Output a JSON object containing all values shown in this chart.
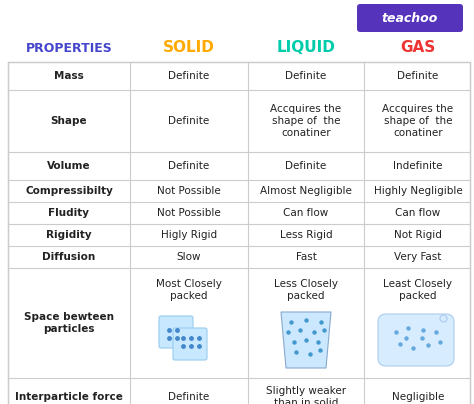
{
  "title": "teachoo",
  "headers": [
    "PROPERTIES",
    "SOLID",
    "LIQUID",
    "GAS"
  ],
  "header_colors": [
    "#4444cc",
    "#ffaa00",
    "#00ccaa",
    "#ee3333"
  ],
  "rows": [
    [
      "Mass",
      "Definite",
      "Definite",
      "Definite"
    ],
    [
      "Shape",
      "Definite",
      "Accquires the\nshape of  the\nconatiner",
      "Accquires the\nshape of  the\nconatiner"
    ],
    [
      "Volume",
      "Definite",
      "Definite",
      "Indefinite"
    ],
    [
      "Compressibilty",
      "Not Possible",
      "Almost Negligible",
      "Highly Negligible"
    ],
    [
      "Fludity",
      "Not Possible",
      "Can flow",
      "Can flow"
    ],
    [
      "Rigidity",
      "Higly Rigid",
      "Less Rigid",
      "Not Rigid"
    ],
    [
      "Diffusion",
      "Slow",
      "Fast",
      "Very Fast"
    ],
    [
      "Space bewteen\nparticles",
      "Most Closely\npacked",
      "Less Closely\npacked",
      "Least Closely\npacked"
    ],
    [
      "Interparticle force",
      "Definite",
      "Slightly weaker\nthan in solid",
      "Negligible"
    ]
  ],
  "bg_color": "#ffffff",
  "teachoo_bg": "#5533bb",
  "teachoo_color": "#ffffff"
}
